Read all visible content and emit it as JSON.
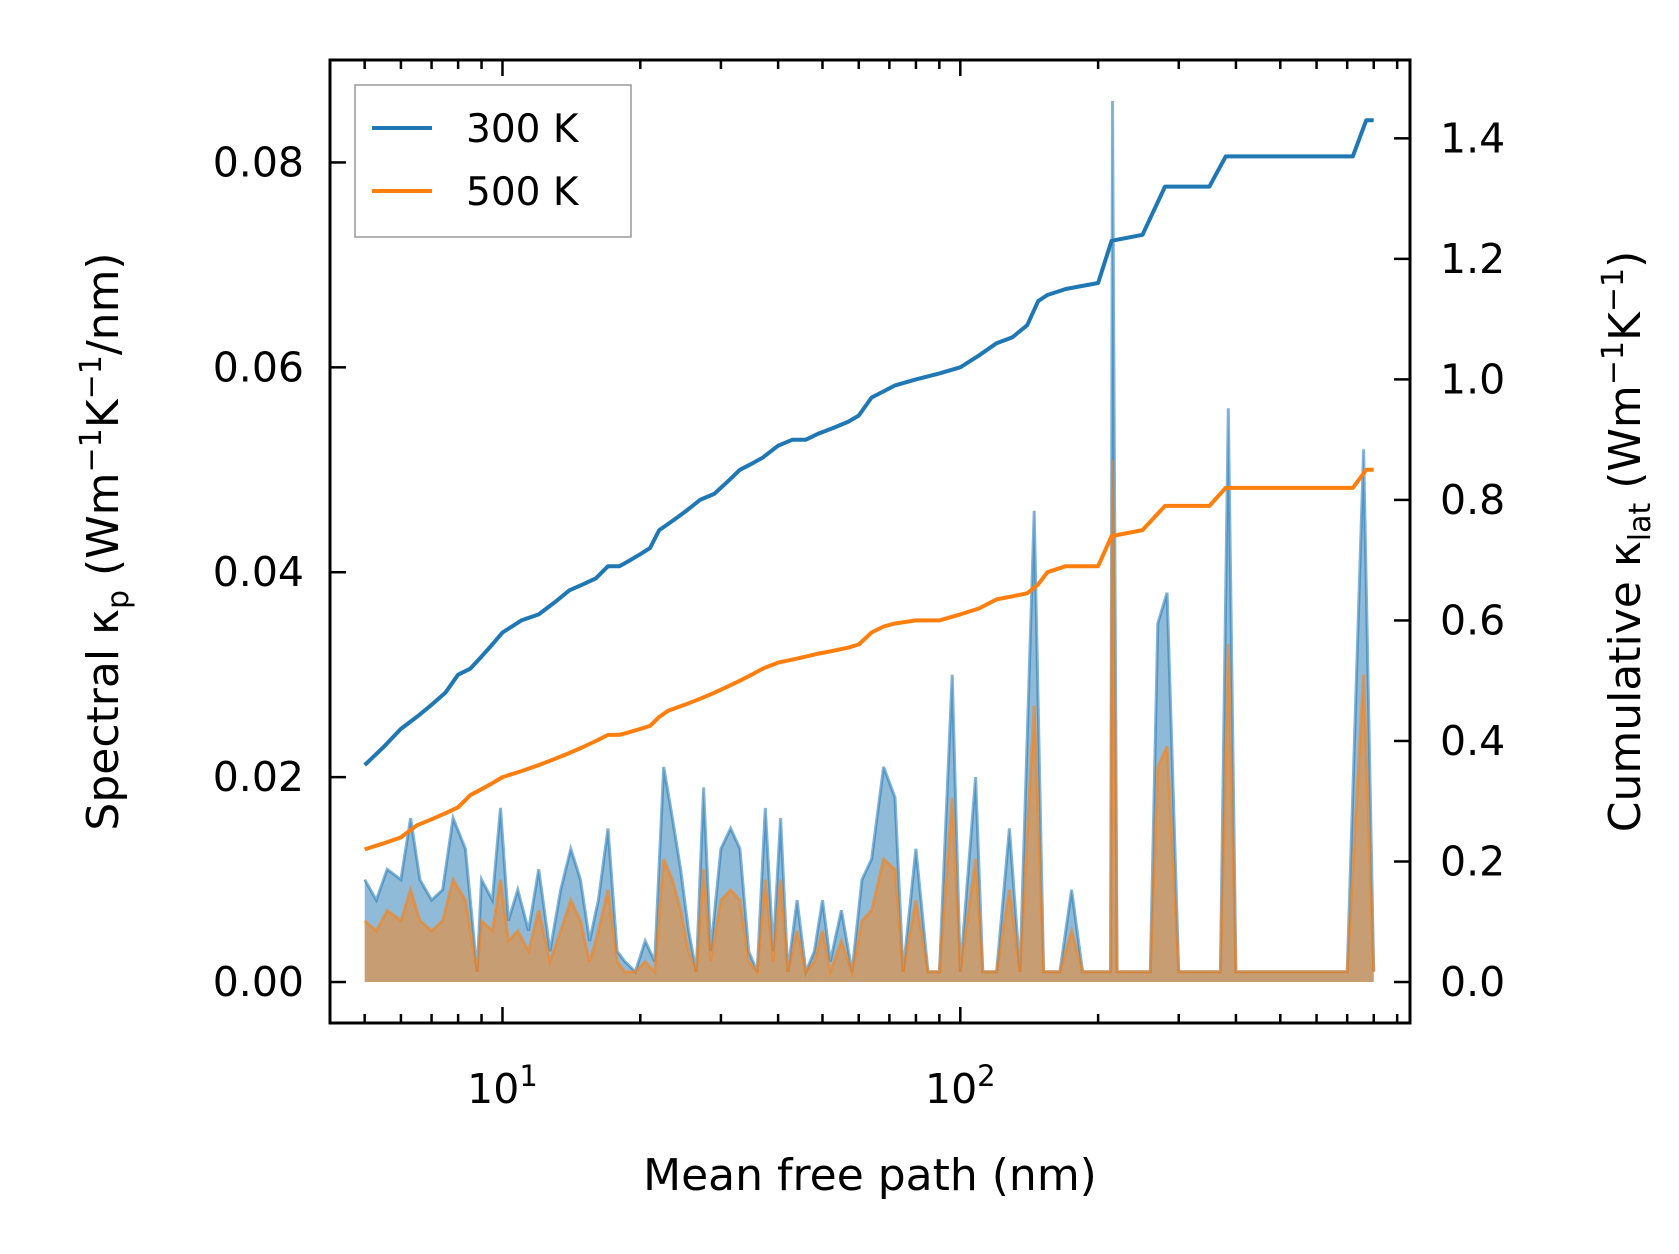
{
  "chart_data": {
    "type": "line",
    "xlabel": "Mean free path (nm)",
    "ylabel_left": {
      "main": "Spectral κ",
      "sub": "p",
      "unit_open": " (Wm",
      "sup1": "−1",
      "mid": "K",
      "sup2": "−1",
      "tail": "/nm)"
    },
    "ylabel_right": {
      "main": "Cumulative κ",
      "sub": "lat",
      "unit_open": " (Wm",
      "sup1": "−1",
      "mid": "K",
      "sup2": "−1",
      "tail": ")"
    },
    "x_scale": "log",
    "xlim": [
      4.2,
      960
    ],
    "ylim_left": [
      -0.004,
      0.09
    ],
    "ylim_right": [
      -0.068,
      1.53
    ],
    "xticks": [
      {
        "value": 10,
        "base": "10",
        "exp": "1"
      },
      {
        "value": 100,
        "base": "10",
        "exp": "2"
      }
    ],
    "yticks_left": [
      "0.00",
      "0.02",
      "0.04",
      "0.06",
      "0.08"
    ],
    "yticks_left_values": [
      0,
      0.02,
      0.04,
      0.06,
      0.08
    ],
    "yticks_right": [
      "0.0",
      "0.2",
      "0.4",
      "0.6",
      "0.8",
      "1.0",
      "1.2",
      "1.4"
    ],
    "yticks_right_values": [
      0,
      0.2,
      0.4,
      0.6,
      0.8,
      1.0,
      1.2,
      1.4
    ],
    "legend_position": "upper-left",
    "series": [
      {
        "name": "300 K",
        "color": "#1f77b4",
        "cumulative": [
          [
            5.0,
            0.36
          ],
          [
            5.5,
            0.39
          ],
          [
            6.0,
            0.42
          ],
          [
            6.5,
            0.44
          ],
          [
            7.0,
            0.46
          ],
          [
            7.5,
            0.48
          ],
          [
            8.0,
            0.51
          ],
          [
            8.5,
            0.52
          ],
          [
            9.0,
            0.54
          ],
          [
            9.5,
            0.56
          ],
          [
            10,
            0.58
          ],
          [
            11,
            0.6
          ],
          [
            12,
            0.61
          ],
          [
            13,
            0.63
          ],
          [
            14,
            0.65
          ],
          [
            15,
            0.66
          ],
          [
            16,
            0.67
          ],
          [
            17,
            0.69
          ],
          [
            18,
            0.69
          ],
          [
            19,
            0.7
          ],
          [
            20,
            0.71
          ],
          [
            21,
            0.72
          ],
          [
            22,
            0.75
          ],
          [
            23,
            0.76
          ],
          [
            24,
            0.77
          ],
          [
            25,
            0.78
          ],
          [
            26,
            0.79
          ],
          [
            27,
            0.8
          ],
          [
            29,
            0.81
          ],
          [
            31,
            0.83
          ],
          [
            33,
            0.85
          ],
          [
            35,
            0.86
          ],
          [
            37,
            0.87
          ],
          [
            40,
            0.89
          ],
          [
            43,
            0.9
          ],
          [
            46,
            0.9
          ],
          [
            49,
            0.91
          ],
          [
            53,
            0.92
          ],
          [
            57,
            0.93
          ],
          [
            60,
            0.94
          ],
          [
            64,
            0.97
          ],
          [
            68,
            0.98
          ],
          [
            72,
            0.99
          ],
          [
            80,
            1.0
          ],
          [
            90,
            1.01
          ],
          [
            100,
            1.02
          ],
          [
            110,
            1.04
          ],
          [
            120,
            1.06
          ],
          [
            130,
            1.07
          ],
          [
            140,
            1.09
          ],
          [
            148,
            1.13
          ],
          [
            155,
            1.14
          ],
          [
            170,
            1.15
          ],
          [
            200,
            1.16
          ],
          [
            214,
            1.23
          ],
          [
            250,
            1.24
          ],
          [
            280,
            1.32
          ],
          [
            300,
            1.32
          ],
          [
            350,
            1.32
          ],
          [
            380,
            1.37
          ],
          [
            420,
            1.37
          ],
          [
            720,
            1.37
          ],
          [
            770,
            1.43
          ],
          [
            800,
            1.43
          ]
        ],
        "spectral": [
          [
            5.0,
            0.01
          ],
          [
            5.3,
            0.008
          ],
          [
            5.6,
            0.011
          ],
          [
            6.0,
            0.01
          ],
          [
            6.3,
            0.016
          ],
          [
            6.6,
            0.01
          ],
          [
            7.0,
            0.008
          ],
          [
            7.4,
            0.009
          ],
          [
            7.8,
            0.016
          ],
          [
            8.3,
            0.013
          ],
          [
            8.8,
            0.001
          ],
          [
            9.0,
            0.01
          ],
          [
            9.5,
            0.008
          ],
          [
            9.9,
            0.017
          ],
          [
            10.3,
            0.006
          ],
          [
            10.8,
            0.009
          ],
          [
            11.4,
            0.005
          ],
          [
            12.0,
            0.011
          ],
          [
            12.7,
            0.003
          ],
          [
            13.4,
            0.009
          ],
          [
            14.1,
            0.013
          ],
          [
            14.8,
            0.01
          ],
          [
            15.5,
            0.004
          ],
          [
            16.2,
            0.008
          ],
          [
            17.0,
            0.015
          ],
          [
            17.8,
            0.003
          ],
          [
            18.5,
            0.002
          ],
          [
            19.5,
            0.001
          ],
          [
            20.5,
            0.004
          ],
          [
            21.5,
            0.002
          ],
          [
            22.5,
            0.021
          ],
          [
            23.5,
            0.016
          ],
          [
            24.5,
            0.011
          ],
          [
            25.5,
            0.005
          ],
          [
            26.5,
            0.001
          ],
          [
            27.5,
            0.019
          ],
          [
            28.5,
            0.003
          ],
          [
            30.0,
            0.013
          ],
          [
            31.5,
            0.015
          ],
          [
            33.0,
            0.013
          ],
          [
            34.5,
            0.003
          ],
          [
            36.0,
            0.001
          ],
          [
            37.5,
            0.017
          ],
          [
            39.0,
            0.003
          ],
          [
            40.5,
            0.016
          ],
          [
            42.0,
            0.001
          ],
          [
            44.0,
            0.008
          ],
          [
            46.0,
            0.001
          ],
          [
            48.0,
            0.003
          ],
          [
            50.0,
            0.008
          ],
          [
            52.0,
            0.002
          ],
          [
            55.0,
            0.007
          ],
          [
            58.0,
            0.001
          ],
          [
            61.0,
            0.01
          ],
          [
            64.0,
            0.012
          ],
          [
            68.0,
            0.021
          ],
          [
            72.0,
            0.018
          ],
          [
            75.0,
            0.001
          ],
          [
            80.0,
            0.013
          ],
          [
            85.0,
            0.001
          ],
          [
            90.0,
            0.001
          ],
          [
            96.0,
            0.03
          ],
          [
            100.0,
            0.001
          ],
          [
            108.0,
            0.02
          ],
          [
            112.0,
            0.001
          ],
          [
            120.0,
            0.001
          ],
          [
            128.0,
            0.015
          ],
          [
            135.0,
            0.001
          ],
          [
            145.0,
            0.046
          ],
          [
            152.0,
            0.001
          ],
          [
            165.0,
            0.001
          ],
          [
            175.0,
            0.009
          ],
          [
            185.0,
            0.001
          ],
          [
            200.0,
            0.001
          ],
          [
            213.0,
            0.001
          ],
          [
            215.0,
            0.086
          ],
          [
            220.0,
            0.001
          ],
          [
            260.0,
            0.001
          ],
          [
            270.0,
            0.035
          ],
          [
            283.0,
            0.038
          ],
          [
            300.0,
            0.001
          ],
          [
            370.0,
            0.001
          ],
          [
            385.0,
            0.056
          ],
          [
            400.0,
            0.001
          ],
          [
            700.0,
            0.001
          ],
          [
            760.0,
            0.052
          ],
          [
            800.0,
            0.001
          ]
        ]
      },
      {
        "name": "500 K",
        "color": "#ff7f0e",
        "cumulative": [
          [
            5.0,
            0.22
          ],
          [
            5.5,
            0.23
          ],
          [
            6.0,
            0.24
          ],
          [
            6.5,
            0.26
          ],
          [
            7.0,
            0.27
          ],
          [
            7.5,
            0.28
          ],
          [
            8.0,
            0.29
          ],
          [
            8.5,
            0.31
          ],
          [
            9.0,
            0.32
          ],
          [
            9.5,
            0.33
          ],
          [
            10,
            0.34
          ],
          [
            11,
            0.35
          ],
          [
            12,
            0.36
          ],
          [
            13,
            0.37
          ],
          [
            14,
            0.38
          ],
          [
            15,
            0.39
          ],
          [
            16,
            0.4
          ],
          [
            17,
            0.41
          ],
          [
            18,
            0.41
          ],
          [
            19,
            0.415
          ],
          [
            20,
            0.42
          ],
          [
            21,
            0.425
          ],
          [
            22,
            0.44
          ],
          [
            23,
            0.45
          ],
          [
            25,
            0.46
          ],
          [
            27,
            0.47
          ],
          [
            29,
            0.48
          ],
          [
            31,
            0.49
          ],
          [
            33,
            0.5
          ],
          [
            35,
            0.51
          ],
          [
            37,
            0.52
          ],
          [
            40,
            0.53
          ],
          [
            43,
            0.535
          ],
          [
            46,
            0.54
          ],
          [
            49,
            0.545
          ],
          [
            53,
            0.55
          ],
          [
            57,
            0.555
          ],
          [
            60,
            0.56
          ],
          [
            64,
            0.58
          ],
          [
            68,
            0.59
          ],
          [
            72,
            0.595
          ],
          [
            80,
            0.6
          ],
          [
            90,
            0.6
          ],
          [
            100,
            0.61
          ],
          [
            110,
            0.62
          ],
          [
            120,
            0.635
          ],
          [
            130,
            0.64
          ],
          [
            140,
            0.645
          ],
          [
            148,
            0.66
          ],
          [
            155,
            0.68
          ],
          [
            170,
            0.69
          ],
          [
            200,
            0.69
          ],
          [
            214,
            0.74
          ],
          [
            250,
            0.75
          ],
          [
            280,
            0.79
          ],
          [
            300,
            0.79
          ],
          [
            350,
            0.79
          ],
          [
            380,
            0.82
          ],
          [
            420,
            0.82
          ],
          [
            720,
            0.82
          ],
          [
            770,
            0.85
          ],
          [
            800,
            0.85
          ]
        ],
        "spectral": [
          [
            5.0,
            0.006
          ],
          [
            5.3,
            0.005
          ],
          [
            5.6,
            0.007
          ],
          [
            6.0,
            0.006
          ],
          [
            6.3,
            0.009
          ],
          [
            6.6,
            0.006
          ],
          [
            7.0,
            0.005
          ],
          [
            7.4,
            0.006
          ],
          [
            7.8,
            0.01
          ],
          [
            8.3,
            0.008
          ],
          [
            8.8,
            0.001
          ],
          [
            9.0,
            0.006
          ],
          [
            9.5,
            0.005
          ],
          [
            9.9,
            0.01
          ],
          [
            10.3,
            0.004
          ],
          [
            10.8,
            0.005
          ],
          [
            11.4,
            0.003
          ],
          [
            12.0,
            0.007
          ],
          [
            12.7,
            0.002
          ],
          [
            13.4,
            0.005
          ],
          [
            14.1,
            0.008
          ],
          [
            14.8,
            0.006
          ],
          [
            15.5,
            0.002
          ],
          [
            16.2,
            0.005
          ],
          [
            17.0,
            0.009
          ],
          [
            17.8,
            0.002
          ],
          [
            18.5,
            0.001
          ],
          [
            19.5,
            0.001
          ],
          [
            20.5,
            0.002
          ],
          [
            21.5,
            0.001
          ],
          [
            22.5,
            0.012
          ],
          [
            23.5,
            0.01
          ],
          [
            24.5,
            0.007
          ],
          [
            25.5,
            0.003
          ],
          [
            26.5,
            0.001
          ],
          [
            27.5,
            0.011
          ],
          [
            28.5,
            0.002
          ],
          [
            30.0,
            0.008
          ],
          [
            31.5,
            0.009
          ],
          [
            33.0,
            0.008
          ],
          [
            34.5,
            0.002
          ],
          [
            36.0,
            0.001
          ],
          [
            37.5,
            0.01
          ],
          [
            39.0,
            0.002
          ],
          [
            40.5,
            0.01
          ],
          [
            42.0,
            0.001
          ],
          [
            44.0,
            0.005
          ],
          [
            46.0,
            0.001
          ],
          [
            48.0,
            0.002
          ],
          [
            50.0,
            0.005
          ],
          [
            52.0,
            0.001
          ],
          [
            55.0,
            0.004
          ],
          [
            58.0,
            0.001
          ],
          [
            61.0,
            0.006
          ],
          [
            64.0,
            0.007
          ],
          [
            68.0,
            0.012
          ],
          [
            72.0,
            0.011
          ],
          [
            75.0,
            0.001
          ],
          [
            80.0,
            0.008
          ],
          [
            85.0,
            0.001
          ],
          [
            90.0,
            0.001
          ],
          [
            96.0,
            0.018
          ],
          [
            100.0,
            0.001
          ],
          [
            108.0,
            0.012
          ],
          [
            112.0,
            0.001
          ],
          [
            120.0,
            0.001
          ],
          [
            128.0,
            0.009
          ],
          [
            135.0,
            0.001
          ],
          [
            145.0,
            0.027
          ],
          [
            152.0,
            0.001
          ],
          [
            165.0,
            0.001
          ],
          [
            175.0,
            0.005
          ],
          [
            185.0,
            0.001
          ],
          [
            200.0,
            0.001
          ],
          [
            213.0,
            0.001
          ],
          [
            215.0,
            0.051
          ],
          [
            220.0,
            0.001
          ],
          [
            260.0,
            0.001
          ],
          [
            270.0,
            0.021
          ],
          [
            283.0,
            0.023
          ],
          [
            300.0,
            0.001
          ],
          [
            370.0,
            0.001
          ],
          [
            385.0,
            0.033
          ],
          [
            400.0,
            0.001
          ],
          [
            700.0,
            0.001
          ],
          [
            760.0,
            0.03
          ],
          [
            800.0,
            0.001
          ]
        ]
      }
    ]
  }
}
